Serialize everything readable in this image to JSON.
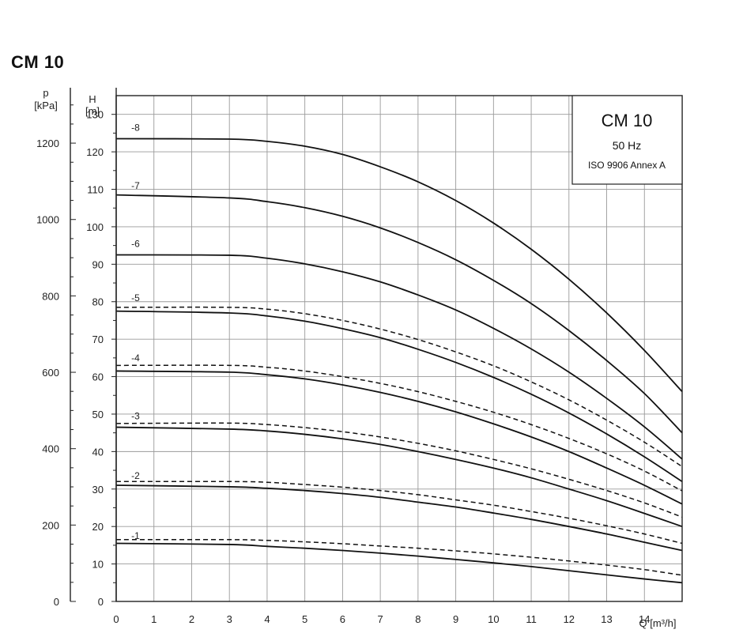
{
  "page_title": "CM 10",
  "chart_data": {
    "type": "line",
    "title": "CM 10",
    "legend_box": {
      "title": "CM 10",
      "frequency": "50 Hz",
      "standard": "ISO 9906 Annex A",
      "placement": "top-right"
    },
    "xlabel": "Q [m³/h]",
    "ylabel_head": "H",
    "ylabel_head_unit": "[m]",
    "ylabel_pressure": "p",
    "ylabel_pressure_unit": "[kPa]",
    "xlim": [
      0,
      15
    ],
    "ylim": [
      0,
      135
    ],
    "x_ticks": [
      0,
      1,
      2,
      3,
      4,
      5,
      6,
      7,
      8,
      9,
      10,
      11,
      12,
      13,
      14
    ],
    "y_ticks": [
      0,
      10,
      20,
      30,
      40,
      50,
      60,
      70,
      80,
      90,
      100,
      110,
      120,
      130
    ],
    "pressure_ticks": [
      0,
      200,
      400,
      600,
      800,
      1000,
      1200
    ],
    "pressure_per_metre": 9.81,
    "grid": true,
    "x": [
      0,
      3,
      4,
      5,
      6,
      7,
      8,
      9,
      10,
      11,
      12,
      13,
      14,
      15
    ],
    "series": [
      {
        "name": "-1",
        "style": "solid",
        "label_head": 17.5,
        "values": [
          15.5,
          15.2,
          14.7,
          14.2,
          13.6,
          12.9,
          12.1,
          11.2,
          10.3,
          9.3,
          8.2,
          7.1,
          6.0,
          5.0
        ]
      },
      {
        "name": "-2",
        "style": "solid",
        "label_head": 33.5,
        "values": [
          31.0,
          30.6,
          30.2,
          29.6,
          28.8,
          27.8,
          26.5,
          25.2,
          23.6,
          21.9,
          20.0,
          18.0,
          15.8,
          13.6
        ]
      },
      {
        "name": "-3",
        "style": "solid",
        "label_head": 49.5,
        "values": [
          46.5,
          46.0,
          45.5,
          44.6,
          43.4,
          41.9,
          40.0,
          37.9,
          35.6,
          33.0,
          30.0,
          26.9,
          23.5,
          20.0
        ]
      },
      {
        "name": "-4",
        "style": "solid",
        "label_head": 65.0,
        "values": [
          61.5,
          61.2,
          60.5,
          59.4,
          57.8,
          55.8,
          53.4,
          50.6,
          47.4,
          43.9,
          40.0,
          35.6,
          31.0,
          26.0
        ]
      },
      {
        "name": "-5",
        "style": "solid",
        "label_head": 81.0,
        "values": [
          77.5,
          77.0,
          76.2,
          74.8,
          72.8,
          70.4,
          67.3,
          63.8,
          59.8,
          55.3,
          50.3,
          44.7,
          38.6,
          32.0
        ]
      },
      {
        "name": "-6",
        "style": "solid",
        "label_head": 95.5,
        "values": [
          92.5,
          92.4,
          91.6,
          90.1,
          88.0,
          85.3,
          81.8,
          77.8,
          72.9,
          67.4,
          61.2,
          54.2,
          46.6,
          38.0
        ]
      },
      {
        "name": "-7",
        "style": "solid",
        "label_head": 111.0,
        "values": [
          108.5,
          107.7,
          106.7,
          105.1,
          102.8,
          99.7,
          95.8,
          91.2,
          85.7,
          79.5,
          72.3,
          64.3,
          55.5,
          45.0
        ]
      },
      {
        "name": "-8",
        "style": "solid",
        "label_head": 126.5,
        "values": [
          123.5,
          123.4,
          122.8,
          121.5,
          119.3,
          116.0,
          112.0,
          107.0,
          101.0,
          94.0,
          86.0,
          77.0,
          67.0,
          56.0
        ]
      },
      {
        "name": "-1 dashed",
        "style": "dashed",
        "values": [
          16.5,
          16.5,
          16.3,
          15.9,
          15.4,
          14.8,
          14.2,
          13.5,
          12.7,
          11.8,
          10.8,
          9.7,
          8.5,
          7.0
        ]
      },
      {
        "name": "-2 dashed",
        "style": "dashed",
        "values": [
          32.0,
          32.0,
          31.8,
          31.2,
          30.5,
          29.6,
          28.5,
          27.1,
          25.7,
          24.0,
          22.2,
          20.2,
          18.0,
          15.5
        ]
      },
      {
        "name": "-3 dashed",
        "style": "dashed",
        "values": [
          47.5,
          47.6,
          47.2,
          46.4,
          45.3,
          43.9,
          42.2,
          40.2,
          37.9,
          35.4,
          32.6,
          29.6,
          26.3,
          22.5
        ]
      },
      {
        "name": "-4 dashed",
        "style": "dashed",
        "values": [
          63.0,
          63.0,
          62.5,
          61.5,
          60.0,
          58.2,
          56.0,
          53.4,
          50.5,
          47.2,
          43.5,
          39.4,
          34.8,
          29.5
        ]
      },
      {
        "name": "-5 dashed",
        "style": "dashed",
        "values": [
          78.5,
          78.5,
          78.0,
          76.8,
          75.0,
          72.7,
          69.9,
          66.6,
          62.9,
          58.6,
          53.8,
          48.4,
          42.5,
          36.0
        ]
      }
    ]
  }
}
